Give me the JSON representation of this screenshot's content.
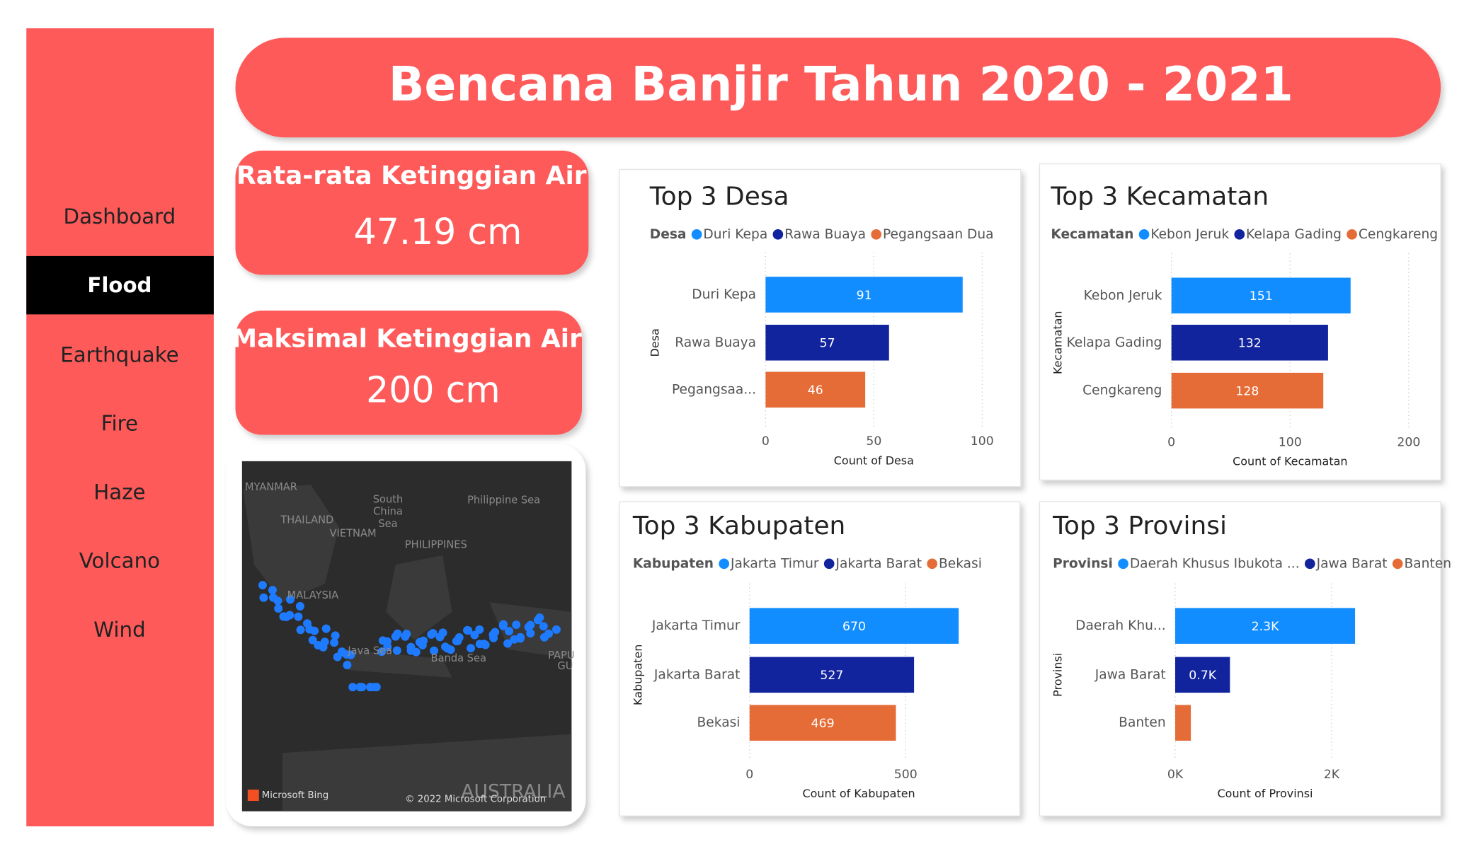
{
  "header": {
    "title": "Bencana Banjir Tahun 2020 - 2021"
  },
  "nav": {
    "items": [
      "Dashboard",
      "Flood",
      "Earthquake",
      "Fire",
      "Haze",
      "Volcano",
      "Wind"
    ],
    "active": "Flood"
  },
  "kpis": [
    {
      "title": "Rata-rata Ketinggian Air",
      "value": "47.19 cm"
    },
    {
      "title": "Maksimal Ketinggian Air",
      "value": "200 cm"
    }
  ],
  "map": {
    "labels": [
      "MYANMAR",
      "THAILAND",
      "VIETNAM",
      "South",
      "China",
      "Sea",
      "Philippine Sea",
      "PHILIPPINES",
      "MALAYSIA",
      "Java Sea",
      "Banda Sea",
      "PAPU",
      "GU",
      "AUSTRALIA"
    ],
    "attribution": "Microsoft Bing",
    "copyright": "© 2022 Microsoft Corporation"
  },
  "chart_data": [
    {
      "type": "bar",
      "title": "Top 3 Desa",
      "legend_title": "Desa",
      "legend": [
        "Duri Kepa",
        "Rawa Buaya",
        "Pegangsaan Dua"
      ],
      "categories": [
        "Duri Kepa",
        "Rawa Buaya",
        "Pegangsaa..."
      ],
      "values": [
        91,
        57,
        46
      ],
      "colors": [
        "#118dff",
        "#12239e",
        "#e66c37"
      ],
      "x_label": "Count of Desa",
      "y_label": "Desa",
      "xlim": [
        0,
        100
      ],
      "xticks": [
        0,
        50,
        100
      ],
      "grid": true
    },
    {
      "type": "bar",
      "title": "Top 3 Kecamatan",
      "legend_title": "Kecamatan",
      "legend": [
        "Kebon Jeruk",
        "Kelapa Gading",
        "Cengkareng"
      ],
      "categories": [
        "Kebon Jeruk",
        "Kelapa Gading",
        "Cengkareng"
      ],
      "values": [
        151,
        132,
        128
      ],
      "colors": [
        "#118dff",
        "#12239e",
        "#e66c37"
      ],
      "x_label": "Count of Kecamatan",
      "y_label": "Kecamatan",
      "xlim": [
        0,
        200
      ],
      "xticks": [
        0,
        100,
        200
      ],
      "grid": true
    },
    {
      "type": "bar",
      "title": "Top 3 Kabupaten",
      "legend_title": "Kabupaten",
      "legend": [
        "Jakarta Timur",
        "Jakarta Barat",
        "Bekasi"
      ],
      "categories": [
        "Jakarta Timur",
        "Jakarta Barat",
        "Bekasi"
      ],
      "values": [
        670,
        527,
        469
      ],
      "colors": [
        "#118dff",
        "#12239e",
        "#e66c37"
      ],
      "x_label": "Count of Kabupaten",
      "y_label": "Kabupaten",
      "xlim": [
        0,
        700
      ],
      "xticks": [
        0,
        500
      ],
      "grid": true
    },
    {
      "type": "bar",
      "title": "Top 3 Provinsi",
      "legend_title": "Provinsi",
      "legend": [
        "Daerah Khusus Ibukota ...",
        "Jawa Barat",
        "Banten"
      ],
      "categories": [
        "Daerah Khu...",
        "Jawa Barat",
        "Banten"
      ],
      "values": [
        2300,
        700,
        200
      ],
      "value_labels": [
        "2.3K",
        "0.7K",
        null
      ],
      "colors": [
        "#118dff",
        "#12239e",
        "#e66c37"
      ],
      "x_label": "Count of Provinsi",
      "y_label": "Provinsi",
      "xlim": [
        0,
        2300
      ],
      "xticks": [
        {
          "value": 0,
          "label": "0K"
        },
        {
          "value": 2000,
          "label": "2K"
        }
      ],
      "grid": true
    }
  ]
}
